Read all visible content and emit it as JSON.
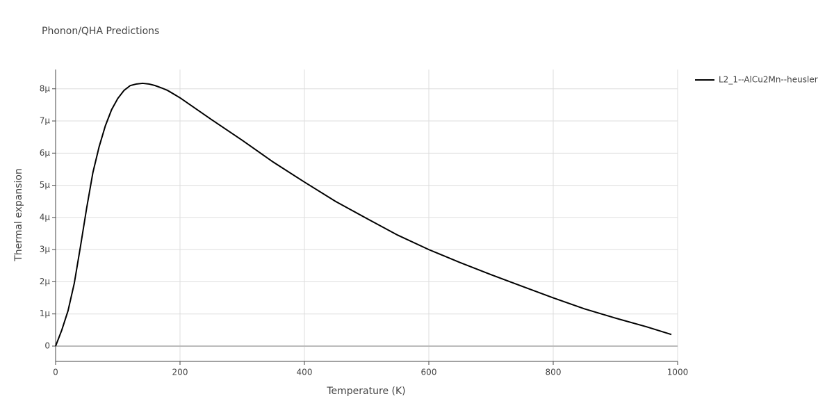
{
  "chart_data": {
    "type": "line",
    "title": "Phonon/QHA Predictions",
    "x_label": "Temperature (K)",
    "y_label": "Thermal expansion",
    "x": [
      0,
      10,
      20,
      30,
      40,
      50,
      60,
      70,
      80,
      90,
      100,
      110,
      120,
      130,
      140,
      150,
      160,
      170,
      180,
      200,
      250,
      300,
      350,
      400,
      450,
      500,
      550,
      600,
      650,
      700,
      750,
      800,
      850,
      900,
      950,
      990
    ],
    "series": [
      {
        "name": "L2_1--AlCu2Mn--heusler",
        "color": "#000000",
        "values": [
          0,
          5e-07,
          1.1e-06,
          1.95e-06,
          3.1e-06,
          4.3e-06,
          5.4e-06,
          6.2e-06,
          6.85e-06,
          7.35e-06,
          7.7e-06,
          7.95e-06,
          8.1e-06,
          8.15e-06,
          8.17e-06,
          8.15e-06,
          8.1e-06,
          8.03e-06,
          7.95e-06,
          7.72e-06,
          7.05e-06,
          6.4e-06,
          5.72e-06,
          5.1e-06,
          4.5e-06,
          3.97e-06,
          3.45e-06,
          3e-06,
          2.6e-06,
          2.22e-06,
          1.86e-06,
          1.5e-06,
          1.16e-06,
          8.7e-07,
          6e-07,
          3.6e-07
        ]
      }
    ],
    "xlim": [
      0,
      1000
    ],
    "xticks": [
      0,
      200,
      400,
      600,
      800,
      1000
    ],
    "ylim": [
      -4.76e-07,
      8.6e-06
    ],
    "yticks": [
      0,
      {
        "value": 1e-06,
        "label": "1µ"
      },
      {
        "value": 2e-06,
        "label": "2µ"
      },
      {
        "value": 3e-06,
        "label": "3µ"
      },
      {
        "value": 4e-06,
        "label": "4µ"
      },
      {
        "value": 5e-06,
        "label": "5µ"
      },
      {
        "value": 6e-06,
        "label": "6µ"
      },
      {
        "value": 7e-06,
        "label": "7µ"
      },
      {
        "value": 8e-06,
        "label": "8µ"
      }
    ],
    "grid": true,
    "legend": "right"
  }
}
